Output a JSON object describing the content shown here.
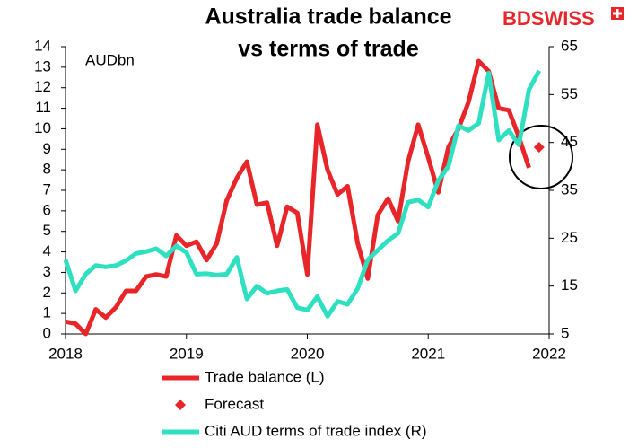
{
  "chart_data": {
    "type": "line",
    "title": [
      "Australia trade balance",
      "vs terms of trade"
    ],
    "logo": "BDSWISS",
    "y_label": "AUDbn",
    "xlim": [
      2018,
      2022
    ],
    "xticks": [
      2018,
      2019,
      2020,
      2021,
      2022
    ],
    "ylim": [
      0,
      14
    ],
    "yticks": [
      0,
      1,
      2,
      3,
      4,
      5,
      6,
      7,
      8,
      9,
      10,
      11,
      12,
      13,
      14
    ],
    "y2lim": [
      5,
      65
    ],
    "y2ticks": [
      5,
      15,
      25,
      35,
      45,
      55,
      65
    ],
    "legend": "bottom",
    "series": [
      {
        "name": "Trade balance (L)",
        "color": "#e8262a",
        "axis": "y",
        "style": "line",
        "x": [
          2018,
          2018.083,
          2018.167,
          2018.25,
          2018.333,
          2018.417,
          2018.5,
          2018.583,
          2018.667,
          2018.75,
          2018.833,
          2018.917,
          2019,
          2019.083,
          2019.167,
          2019.25,
          2019.333,
          2019.417,
          2019.5,
          2019.583,
          2019.667,
          2019.75,
          2019.833,
          2019.917,
          2020,
          2020.083,
          2020.167,
          2020.25,
          2020.333,
          2020.417,
          2020.5,
          2020.583,
          2020.667,
          2020.75,
          2020.833,
          2020.917,
          2021,
          2021.083,
          2021.167,
          2021.25,
          2021.333,
          2021.417,
          2021.5,
          2021.583,
          2021.667,
          2021.75,
          2021.833
        ],
        "values": [
          0.6,
          0.5,
          0.0,
          1.2,
          0.8,
          1.3,
          2.1,
          2.1,
          2.8,
          2.9,
          2.8,
          4.8,
          4.3,
          4.5,
          3.6,
          4.4,
          6.5,
          7.6,
          8.4,
          6.3,
          6.4,
          4.3,
          6.2,
          5.9,
          2.9,
          10.2,
          8.0,
          6.8,
          7.2,
          4.4,
          2.7,
          5.8,
          6.6,
          5.5,
          8.4,
          10.2,
          8.6,
          6.9,
          9.1,
          10.0,
          11.3,
          13.3,
          12.8,
          11.0,
          10.9,
          9.6,
          8.1
        ]
      },
      {
        "name": "Forecast",
        "color": "#e8262a",
        "axis": "y",
        "style": "marker",
        "x": [
          2021.917
        ],
        "values": [
          9.1
        ]
      },
      {
        "name": "Citi AUD terms of trade index (R)",
        "color": "#2fe0c0",
        "axis": "y2",
        "style": "line",
        "x": [
          2018,
          2018.083,
          2018.167,
          2018.25,
          2018.333,
          2018.417,
          2018.5,
          2018.583,
          2018.667,
          2018.75,
          2018.833,
          2018.917,
          2019,
          2019.083,
          2019.167,
          2019.25,
          2019.333,
          2019.417,
          2019.5,
          2019.583,
          2019.667,
          2019.75,
          2019.833,
          2019.917,
          2020,
          2020.083,
          2020.167,
          2020.25,
          2020.333,
          2020.417,
          2020.5,
          2020.583,
          2020.667,
          2020.75,
          2020.833,
          2020.917,
          2021,
          2021.083,
          2021.167,
          2021.25,
          2021.333,
          2021.417,
          2021.5,
          2021.583,
          2021.667,
          2021.75,
          2021.833,
          2021.917
        ],
        "values": [
          20.5,
          14,
          17.5,
          19.3,
          19,
          19.3,
          20.3,
          21.8,
          22.2,
          22.8,
          21.3,
          23.4,
          22,
          17.5,
          17.6,
          17.3,
          17.5,
          21,
          12.3,
          15,
          13.5,
          14,
          14.3,
          10.5,
          10,
          12.8,
          8.7,
          11.8,
          11.2,
          14.5,
          20.5,
          22.5,
          24.5,
          26,
          32.5,
          33,
          31.5,
          37,
          40,
          48.5,
          47.5,
          49,
          59.5,
          45.5,
          47.5,
          44.5,
          56,
          60
        ]
      }
    ]
  }
}
